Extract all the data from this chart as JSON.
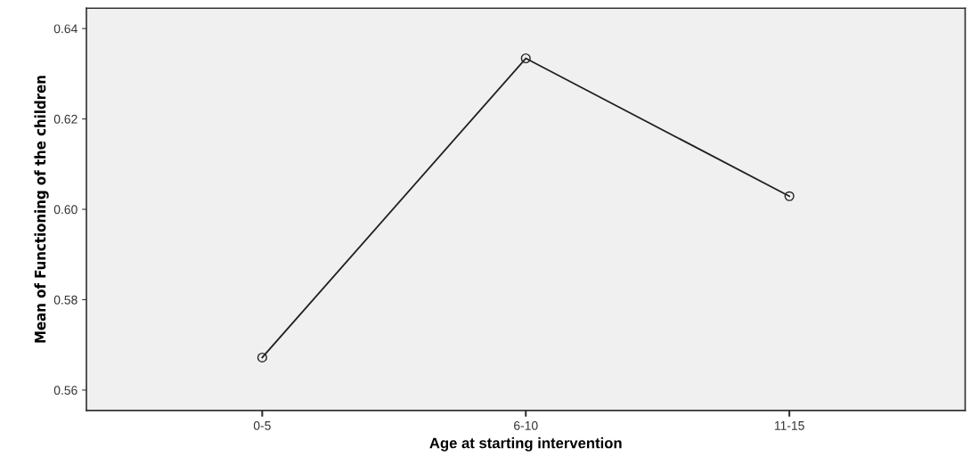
{
  "chart_data": {
    "type": "line",
    "xlabel": "Age at starting intervention",
    "ylabel": "Mean of Functioning of the children",
    "categories": [
      "0-5",
      "6-10",
      "11-15"
    ],
    "series": [
      {
        "color": "#222222",
        "values": [
          0.5672,
          0.6334,
          0.6029
        ]
      }
    ],
    "ylim": [
      0.5555,
      0.6445
    ],
    "yticks": [
      0.56,
      0.58,
      {
        "value": 0.6,
        "label": "0.60"
      },
      0.62,
      0.64
    ],
    "marker": "circle",
    "line_style": "solid",
    "grid": false
  }
}
